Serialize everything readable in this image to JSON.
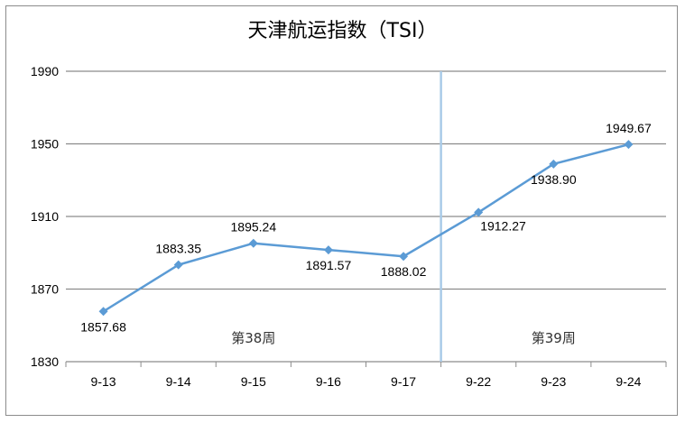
{
  "chart_data": {
    "type": "line",
    "title": "天津航运指数（TSI）",
    "categories": [
      "9-13",
      "9-14",
      "9-15",
      "9-16",
      "9-17",
      "9-22",
      "9-23",
      "9-24"
    ],
    "values": [
      1857.68,
      1883.35,
      1895.24,
      1891.57,
      1888.02,
      1912.27,
      1938.9,
      1949.67
    ],
    "value_labels": [
      "1857.68",
      "1883.35",
      "1895.24",
      "1891.57",
      "1888.02",
      "1912.27",
      "1938.90",
      "1949.67"
    ],
    "ylim": [
      1830,
      1990
    ],
    "yticks": [
      1830,
      1870,
      1910,
      1950,
      1990
    ],
    "grid": true,
    "week_annotations": [
      {
        "text": "第38周",
        "center_category": 2
      },
      {
        "text": "第39周",
        "center_category": 6
      }
    ],
    "divider_between_categories": [
      4,
      5
    ],
    "colors": {
      "line": "#5b9bd5",
      "divider": "#a9cbe8",
      "grid": "#8c8c8c"
    }
  }
}
